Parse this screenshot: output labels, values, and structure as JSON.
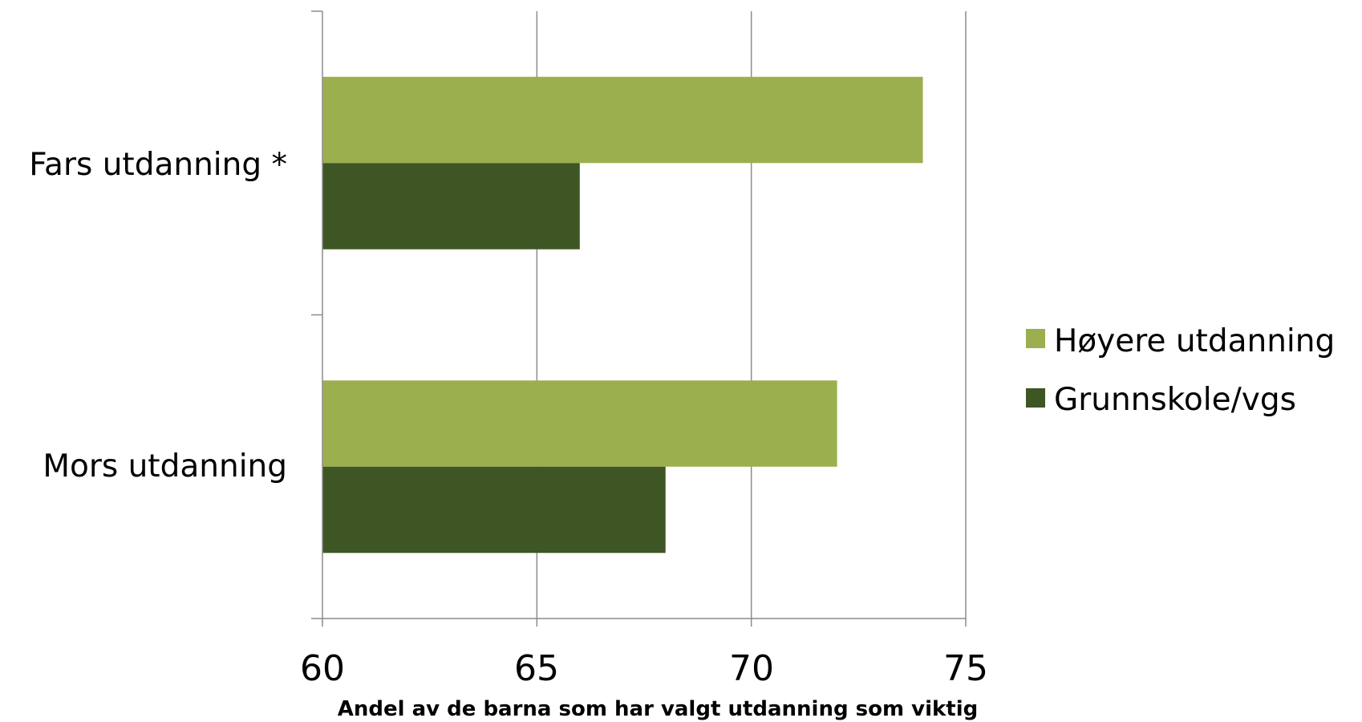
{
  "chart_data": {
    "type": "bar",
    "orientation": "horizontal",
    "categories": [
      "Fars utdanning *",
      "Mors utdanning"
    ],
    "series": [
      {
        "name": "Høyere utdanning",
        "color": "#9BAF4E",
        "values": [
          74,
          72
        ]
      },
      {
        "name": "Grunnskole/vgs",
        "color": "#3E5623",
        "values": [
          66,
          68
        ]
      }
    ],
    "xlabel": "Andel av de barna som har valgt utdanning som viktig",
    "xlim": [
      60,
      75
    ],
    "xticks": [
      "60",
      "65",
      "70",
      "75"
    ],
    "grid": true,
    "legend_position": "right"
  }
}
